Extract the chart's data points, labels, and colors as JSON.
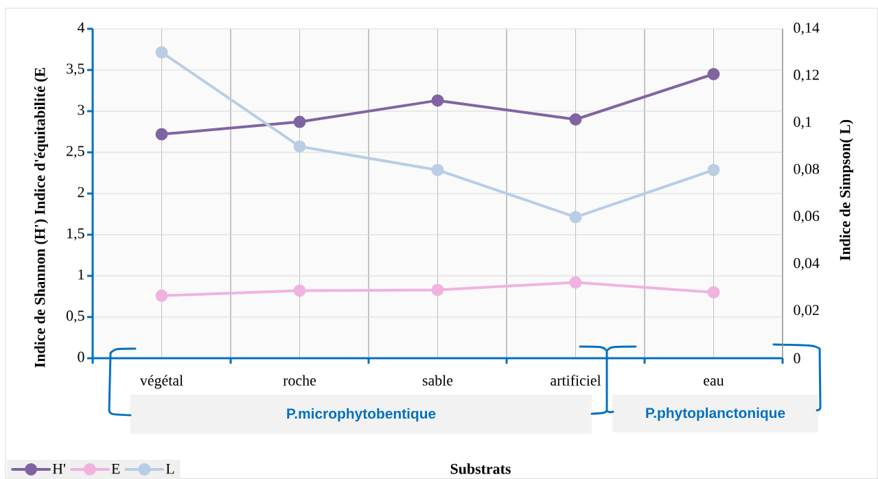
{
  "chart_data": {
    "type": "line",
    "categories": [
      "végétal",
      "roche",
      "sable",
      "artificiel",
      "eau"
    ],
    "series": [
      {
        "name": "H'",
        "color": "#8064a2",
        "values": [
          2.72,
          2.87,
          3.13,
          2.9,
          3.45
        ]
      },
      {
        "name": "E",
        "color": "#f0b3e0",
        "values": [
          0.76,
          0.82,
          0.83,
          0.92,
          0.8
        ]
      },
      {
        "name": "L",
        "color": "#b9cde5",
        "values": [
          0.13,
          0.09,
          0.08,
          0.06,
          0.08
        ],
        "axis": "y2"
      }
    ],
    "xlabel": "Substrats",
    "ylabel": "Indice de Shannon (H') Indice d'équitabilité (E",
    "y2label": "Indice de Simpson( L)",
    "ylim": [
      0,
      4
    ],
    "yticks": [
      0,
      {
        "value": 0.5,
        "label": "0,5"
      },
      1,
      {
        "value": 1.5,
        "label": "1,5"
      },
      2,
      {
        "value": 2.5,
        "label": "2,5"
      },
      3,
      {
        "value": 3.5,
        "label": "3,5"
      },
      4
    ],
    "y2lim": [
      0,
      0.14
    ],
    "y2ticks": [
      0,
      {
        "value": 0.02,
        "label": "0,02"
      },
      {
        "value": 0.04,
        "label": "0,04"
      },
      {
        "value": 0.06,
        "label": "0,06"
      },
      {
        "value": 0.08,
        "label": "0,08"
      },
      {
        "value": 0.1,
        "label": "0,1"
      },
      {
        "value": 0.12,
        "label": "0,12"
      },
      {
        "value": 0.14,
        "label": "0,14"
      }
    ],
    "annotations": [
      "P.microphytobentique",
      "P.phytoplanctonique"
    ],
    "grid": true,
    "legend": "bottom left",
    "marker": "circle",
    "line_style": "solid"
  }
}
